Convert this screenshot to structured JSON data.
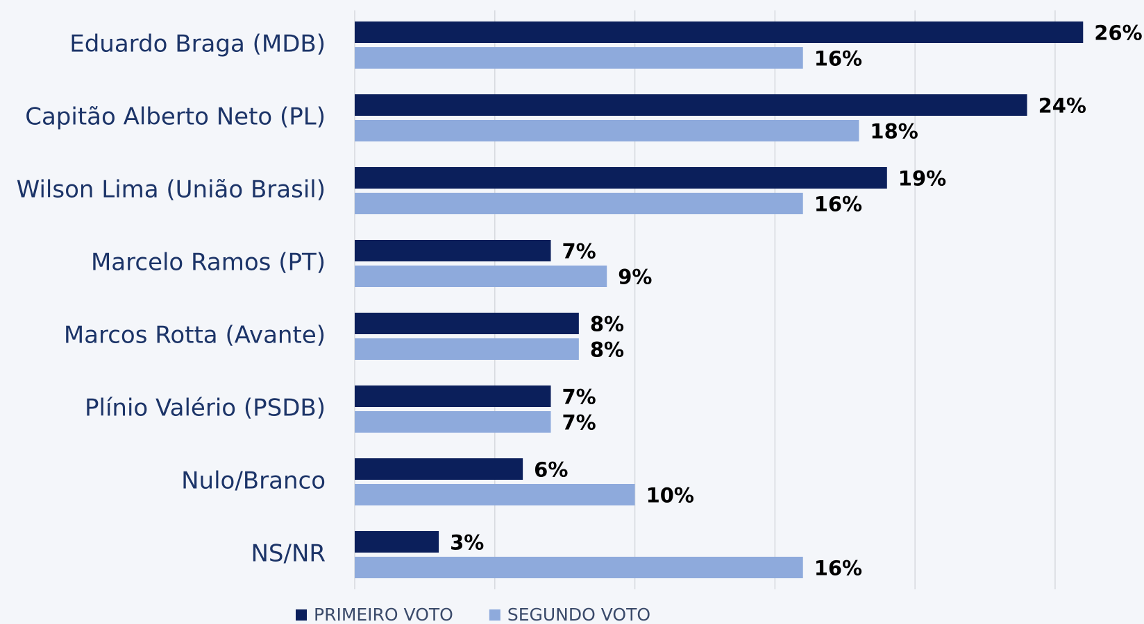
{
  "chart_data": {
    "type": "bar",
    "orientation": "horizontal",
    "categories": [
      "Eduardo Braga (MDB)",
      "Capitão Alberto Neto (PL)",
      "Wilson Lima (União Brasil)",
      "Marcelo Ramos (PT)",
      "Marcos Rotta (Avante)",
      "Plínio Valério (PSDB)",
      "Nulo/Branco",
      "NS/NR"
    ],
    "series": [
      {
        "name": "PRIMEIRO VOTO",
        "color": "#0b1f5b",
        "values": [
          26,
          24,
          19,
          7,
          8,
          7,
          6,
          3
        ],
        "value_labels": [
          "26%",
          "24%",
          "19%",
          "7%",
          "8%",
          "7%",
          "6%",
          "3%"
        ]
      },
      {
        "name": "SEGUNDO VOTO",
        "color": "#8eaadc",
        "values": [
          16,
          18,
          16,
          9,
          8,
          7,
          10,
          16
        ],
        "value_labels": [
          "16%",
          "18%",
          "16%",
          "9%",
          "8%",
          "7%",
          "10%",
          "16%"
        ]
      }
    ],
    "xlim": [
      0,
      28
    ],
    "xticks": [
      0,
      5,
      10,
      15,
      20,
      25
    ],
    "grid": true,
    "legend": "bottom"
  }
}
